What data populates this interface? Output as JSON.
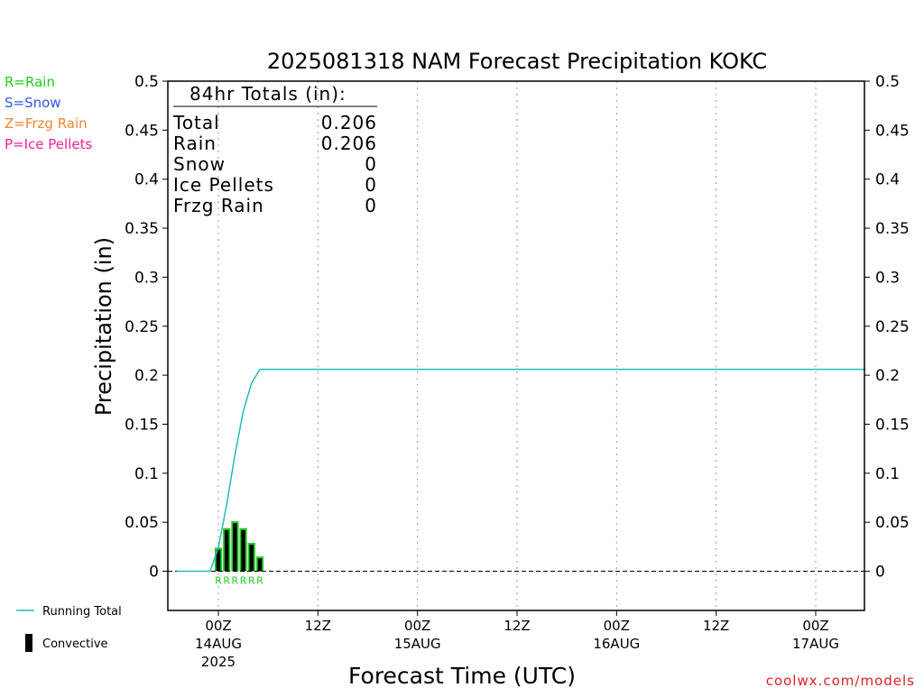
{
  "title": "2025081318 NAM Forecast Precipitation KOKC",
  "watermark": "coolwx.com/models",
  "legend_ptype": [
    {
      "text": "R=Rain",
      "color": "#22cc22"
    },
    {
      "text": "S=Snow",
      "color": "#3355ee"
    },
    {
      "text": "Z=Frzg Rain",
      "color": "#ee8833"
    },
    {
      "text": "P=Ice Pellets",
      "color": "#ee2299"
    }
  ],
  "legend_bottom": {
    "running_total": "Running Total",
    "convective": "Convective"
  },
  "totals": {
    "header": "84hr Totals (in):",
    "rows": [
      {
        "label": "Total",
        "value": "0.206"
      },
      {
        "label": "Rain",
        "value": "0.206"
      },
      {
        "label": "Snow",
        "value": "0"
      },
      {
        "label": "Ice Pellets",
        "value": "0"
      },
      {
        "label": "Frzg Rain",
        "value": "0"
      }
    ]
  },
  "chart_data": {
    "type": "bar",
    "title": "2025081318 NAM Forecast Precipitation KOKC",
    "xlabel": "Forecast Time (UTC)",
    "ylabel": "Precipitation (in)",
    "ylim": [
      -0.04,
      0.5
    ],
    "yticks": [
      0,
      0.05,
      0.1,
      0.15,
      0.2,
      0.25,
      0.3,
      0.35,
      0.4,
      0.45,
      0.5
    ],
    "ytick_labels": [
      "0",
      "0.05",
      "0.1",
      "0.15",
      "0.2",
      "0.25",
      "0.3",
      "0.35",
      "0.4",
      "0.45",
      "0.5"
    ],
    "x_unit": "forecast hour",
    "xlim": [
      0,
      84
    ],
    "xticks": [
      {
        "hour": 6,
        "label": "00Z",
        "sub": "14AUG",
        "sub2": "2025"
      },
      {
        "hour": 18,
        "label": "12Z",
        "sub": "",
        "sub2": ""
      },
      {
        "hour": 30,
        "label": "00Z",
        "sub": "15AUG",
        "sub2": ""
      },
      {
        "hour": 42,
        "label": "12Z",
        "sub": "",
        "sub2": ""
      },
      {
        "hour": 54,
        "label": "00Z",
        "sub": "16AUG",
        "sub2": ""
      },
      {
        "hour": 66,
        "label": "12Z",
        "sub": "",
        "sub2": ""
      },
      {
        "hour": 78,
        "label": "00Z",
        "sub": "17AUG",
        "sub2": ""
      }
    ],
    "gridlines": "vertical dotted",
    "bars": [
      {
        "hour": 6,
        "total": 0.024,
        "convective": 0.022,
        "ptype": "R"
      },
      {
        "hour": 7,
        "total": 0.044,
        "convective": 0.042,
        "ptype": "R"
      },
      {
        "hour": 8,
        "total": 0.051,
        "convective": 0.049,
        "ptype": "R"
      },
      {
        "hour": 9,
        "total": 0.044,
        "convective": 0.042,
        "ptype": "R"
      },
      {
        "hour": 10,
        "total": 0.029,
        "convective": 0.027,
        "ptype": "R"
      },
      {
        "hour": 11,
        "total": 0.015,
        "convective": 0.013,
        "ptype": "R"
      }
    ],
    "running_total": {
      "name": "Running Total",
      "x": [
        1,
        2,
        3,
        4,
        5,
        6,
        7,
        8,
        9,
        10,
        11,
        12,
        84
      ],
      "y": [
        0,
        0,
        0,
        0,
        0,
        0.024,
        0.068,
        0.119,
        0.163,
        0.192,
        0.206,
        0.206,
        0.206
      ]
    },
    "zero_line": "dashed"
  }
}
